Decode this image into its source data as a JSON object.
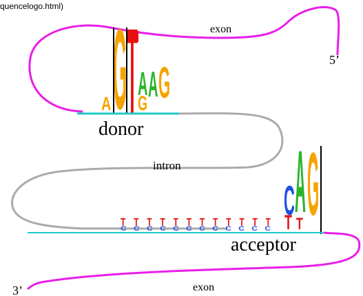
{
  "header": {
    "url_fragment": "quencelogo.html)"
  },
  "labels": {
    "exon_top": "exon",
    "five_prime": "5’",
    "donor": "donor",
    "intron": "intron",
    "acceptor": "acceptor",
    "three_prime": "3’",
    "exon_bottom": "exon"
  },
  "donor_logo": [
    "A",
    "G",
    "T",
    "A",
    "G",
    "A",
    "G"
  ],
  "acceptor_logo": {
    "letters": [
      "C",
      "A",
      "G",
      "T",
      "T"
    ],
    "t_row": "TTTTTTTTTTTT",
    "c_row": "CCCCCCCCCCCC"
  }
}
